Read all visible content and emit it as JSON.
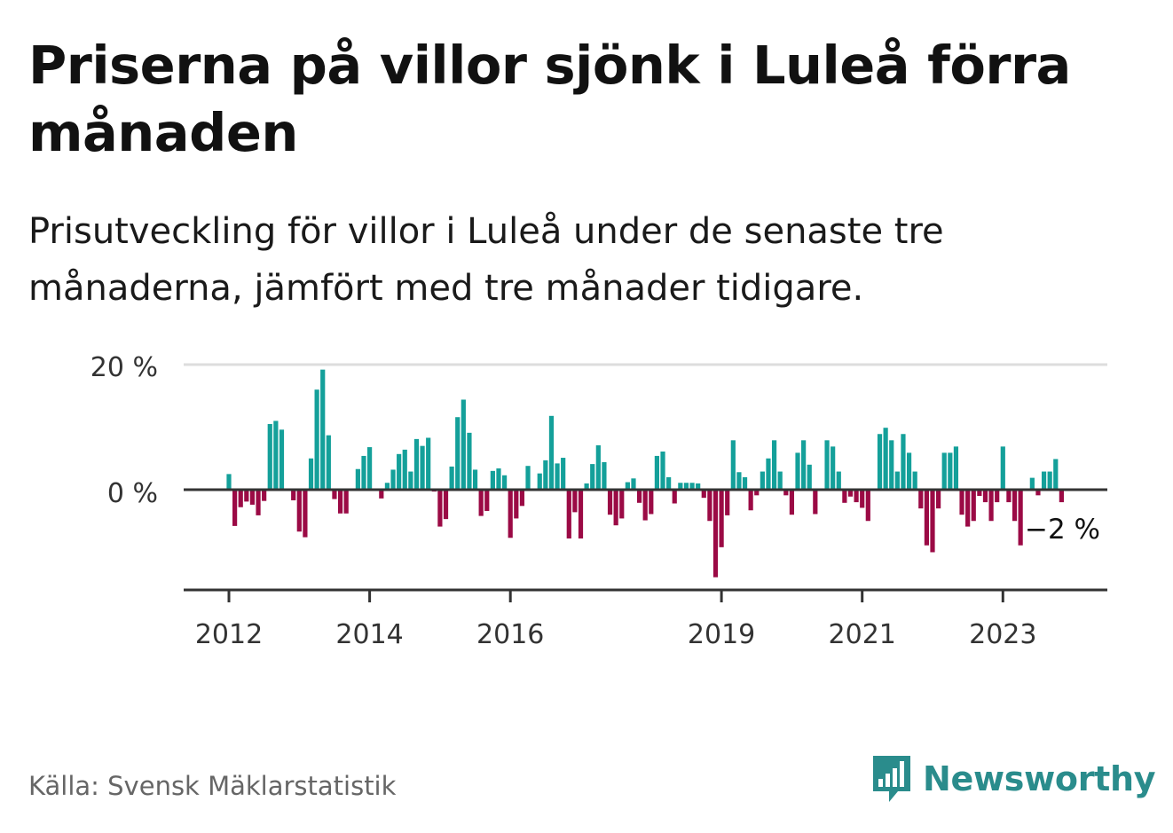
{
  "title": "Priserna på villor sjönk i Luleå förra månaden",
  "subtitle": "Prisutveckling för villor i Luleå under de senaste tre månaderna, jämfört med tre månader tidigare.",
  "source": "Källa: Svensk Mäklarstatistik",
  "brand": {
    "name": "Newsworthy",
    "icon": "newsworthy-logo-icon"
  },
  "colors": {
    "positive": "#14a09a",
    "negative": "#9b0a45",
    "axis": "#333333",
    "grid": "#dddddd",
    "brand": "#2a8c8c"
  },
  "chart_data": {
    "type": "bar",
    "ylabel": "%",
    "ylim": [
      -15.5,
      20
    ],
    "yticks": [
      {
        "value": 0,
        "label": "0 %"
      },
      {
        "value": 20,
        "label": "20 %"
      }
    ],
    "xticks": [
      {
        "year": 2012,
        "label": "2012"
      },
      {
        "year": 2014,
        "label": "2014"
      },
      {
        "year": 2016,
        "label": "2016"
      },
      {
        "year": 2019,
        "label": "2019"
      },
      {
        "year": 2021,
        "label": "2021"
      },
      {
        "year": 2023,
        "label": "2023"
      }
    ],
    "start_year": 2012,
    "last_value_label": "−2 %",
    "values": [
      2.5,
      -5.8,
      -2.8,
      -1.9,
      -2.4,
      -4.1,
      -1.8,
      10.5,
      11.0,
      9.6,
      0,
      -1.7,
      -6.7,
      -7.6,
      5.0,
      16.0,
      19.2,
      8.7,
      -1.5,
      -3.8,
      -3.8,
      0,
      3.3,
      5.4,
      6.8,
      0,
      -1.4,
      1.1,
      3.2,
      5.7,
      6.4,
      2.9,
      8.1,
      7.0,
      8.3,
      -0.3,
      -5.9,
      -4.7,
      3.7,
      11.6,
      14.4,
      9.1,
      3.2,
      -4.2,
      -3.4,
      3.0,
      3.4,
      2.3,
      -7.7,
      -4.6,
      -2.6,
      3.8,
      0,
      2.6,
      4.7,
      11.8,
      4.2,
      5.1,
      -7.8,
      -3.6,
      -7.8,
      1.0,
      4.1,
      7.1,
      4.4,
      -4.0,
      -5.7,
      -4.6,
      1.2,
      1.8,
      -2.1,
      -4.9,
      -3.9,
      5.4,
      6.1,
      2.0,
      -2.2,
      1.1,
      1.1,
      1.1,
      1.0,
      -1.3,
      -5.0,
      -14.0,
      -9.2,
      -4.1,
      7.9,
      2.8,
      2.0,
      -3.3,
      -0.9,
      2.9,
      5.0,
      7.9,
      2.9,
      -0.9,
      -4.0,
      5.9,
      7.9,
      4.0,
      -3.9,
      0,
      7.9,
      6.9,
      2.9,
      -2.1,
      -1.1,
      -2.0,
      -2.9,
      -5.0,
      0,
      8.9,
      9.9,
      7.9,
      2.9,
      8.9,
      5.9,
      2.9,
      -3.0,
      -8.9,
      -10.0,
      -3.0,
      5.9,
      5.9,
      6.9,
      -4.0,
      -5.9,
      -5.0,
      -1.0,
      -2.0,
      -5.0,
      -2.0,
      6.9,
      -2.0,
      -5.0,
      -8.9,
      0,
      1.9,
      -0.9,
      2.9,
      2.9,
      4.9,
      -2.0
    ]
  }
}
